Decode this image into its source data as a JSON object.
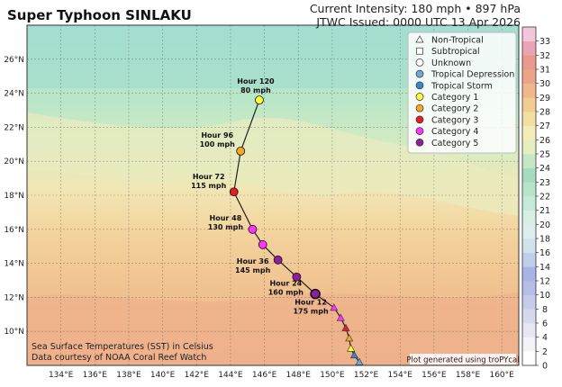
{
  "header": {
    "title": "Super Typhoon SINLAKU",
    "intensity": "Current Intensity: 180 mph • 897 hPa",
    "issued": "JTWC Issued: 0000 UTC 13 Apr 2026"
  },
  "map": {
    "lon_range": [
      132,
      161
    ],
    "lat_range": [
      8,
      28
    ],
    "lon_ticks": [
      "134°E",
      "136°E",
      "138°E",
      "140°E",
      "142°E",
      "144°E",
      "146°E",
      "148°E",
      "150°E",
      "152°E",
      "154°E",
      "156°E",
      "158°E",
      "160°E"
    ],
    "lat_ticks": [
      "10°N",
      "12°N",
      "14°N",
      "16°N",
      "18°N",
      "20°N",
      "22°N",
      "24°N",
      "26°N"
    ],
    "lon_tick_values": [
      134,
      136,
      138,
      140,
      142,
      144,
      146,
      148,
      150,
      152,
      154,
      156,
      158,
      160
    ],
    "lat_tick_values": [
      10,
      12,
      14,
      16,
      18,
      20,
      22,
      24,
      26
    ],
    "sst_note": "Sea Surface Temperatures (SST) in Celsius",
    "sst_credit": "Data courtesy of NOAA Coral Reef Watch",
    "plot_credit": "Plot generated using troPYcal"
  },
  "legend": {
    "items": [
      {
        "label": "Non-Tropical",
        "marker": "triangle",
        "color": "#ffffff"
      },
      {
        "label": "Subtropical",
        "marker": "square",
        "color": "#ffffff"
      },
      {
        "label": "Unknown",
        "marker": "circle",
        "color": "#ffffff"
      },
      {
        "label": "Tropical Depression",
        "marker": "circle",
        "color": "#6fa8dc"
      },
      {
        "label": "Tropical Storm",
        "marker": "circle",
        "color": "#3d85c6"
      },
      {
        "label": "Category 1",
        "marker": "circle",
        "color": "#ffff33"
      },
      {
        "label": "Category 2",
        "marker": "circle",
        "color": "#f6a623"
      },
      {
        "label": "Category 3",
        "marker": "circle",
        "color": "#e51c23"
      },
      {
        "label": "Category 4",
        "marker": "circle",
        "color": "#ff33ff"
      },
      {
        "label": "Category 5",
        "marker": "circle",
        "color": "#8e1f9e"
      }
    ]
  },
  "colorbar": {
    "ticks": [
      "0",
      "2",
      "4",
      "6",
      "8",
      "10",
      "12",
      "14",
      "16",
      "18",
      "20",
      "21",
      "22",
      "23",
      "24",
      "25",
      "26",
      "27",
      "28",
      "29",
      "30",
      "31",
      "32",
      "33"
    ],
    "colors": [
      "#ffffff",
      "#f3f3f8",
      "#e6e7f2",
      "#d6d9ee",
      "#c6cbea",
      "#b6bde6",
      "#a9b3e4",
      "#c0cfe8",
      "#d0e2ec",
      "#dcefee",
      "#d8f0e4",
      "#c5ead8",
      "#b7e4cb",
      "#a6dcbd",
      "#c4e7c4",
      "#e5eec1",
      "#f3edb8",
      "#f4dfa3",
      "#f2cc93",
      "#efb78b",
      "#eba487",
      "#e99a8c",
      "#eba4b4",
      "#f4c6dd"
    ]
  },
  "track": {
    "labels": [
      {
        "hour": "Hour 12",
        "wind": "175 mph"
      },
      {
        "hour": "Hour 24",
        "wind": "160 mph"
      },
      {
        "hour": "Hour 36",
        "wind": "145 mph"
      },
      {
        "hour": "Hour 48",
        "wind": "130 mph"
      },
      {
        "hour": "Hour 72",
        "wind": "115 mph"
      },
      {
        "hour": "Hour 96",
        "wind": "100 mph"
      },
      {
        "hour": "Hour 120",
        "wind": "80 mph"
      }
    ],
    "forecast_points": [
      {
        "lon": 149.0,
        "lat": 12.2,
        "cat": "Category 5"
      },
      {
        "lon": 147.9,
        "lat": 13.2,
        "cat": "Category 5"
      },
      {
        "lon": 146.8,
        "lat": 14.2,
        "cat": "Category 5"
      },
      {
        "lon": 145.9,
        "lat": 15.1,
        "cat": "Category 4"
      },
      {
        "lon": 145.3,
        "lat": 16.0,
        "cat": "Category 4"
      },
      {
        "lon": 144.2,
        "lat": 18.2,
        "cat": "Category 3"
      },
      {
        "lon": 144.6,
        "lat": 20.6,
        "cat": "Category 2"
      },
      {
        "lon": 145.7,
        "lat": 23.6,
        "cat": "Category 1"
      }
    ],
    "past_points": [
      {
        "lon": 150.1,
        "lat": 11.4,
        "cat": "Category 4"
      },
      {
        "lon": 150.5,
        "lat": 10.8,
        "cat": "Category 4"
      },
      {
        "lon": 150.8,
        "lat": 10.2,
        "cat": "Category 3"
      },
      {
        "lon": 151.0,
        "lat": 9.6,
        "cat": "Category 2"
      },
      {
        "lon": 151.1,
        "lat": 9.0,
        "cat": "Category 1"
      },
      {
        "lon": 151.3,
        "lat": 8.6,
        "cat": "Tropical Storm"
      },
      {
        "lon": 151.6,
        "lat": 8.2,
        "cat": "Tropical Depression"
      }
    ]
  }
}
